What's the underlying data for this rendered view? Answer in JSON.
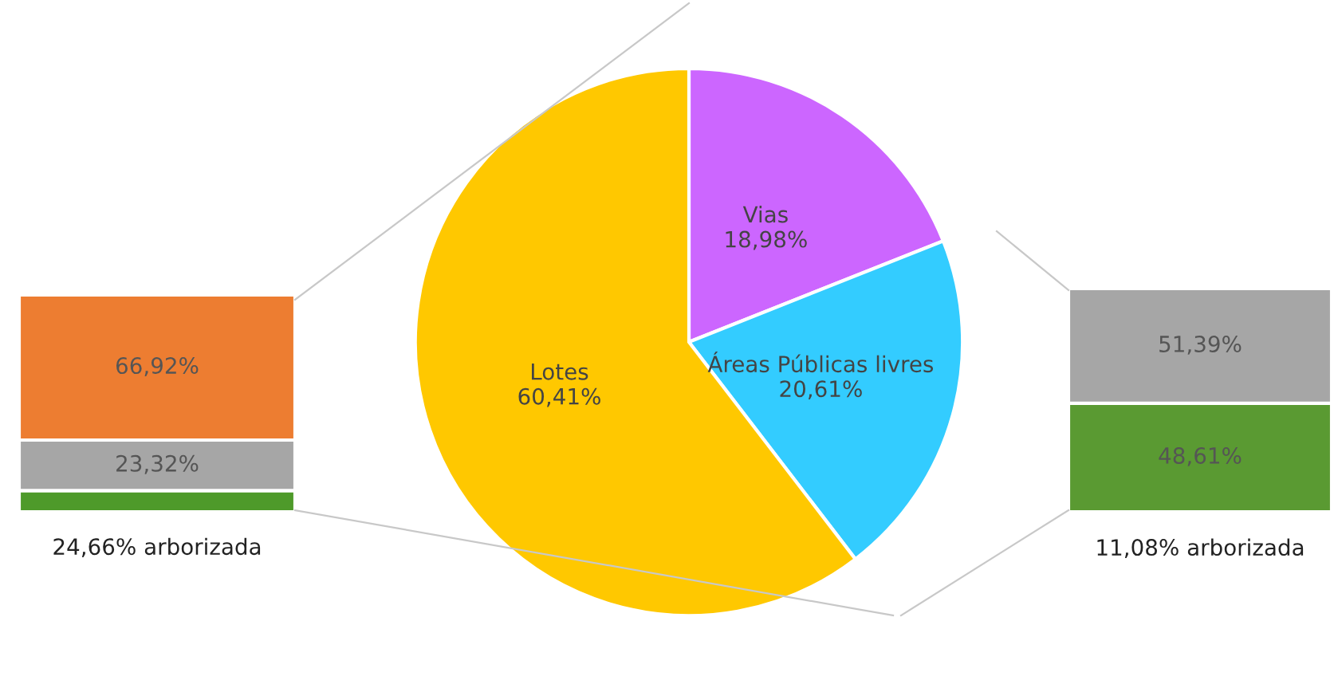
{
  "chart_data": [
    {
      "type": "pie",
      "categories": [
        "Vias",
        "Áreas Públicas livres",
        "Lotes"
      ],
      "values": [
        18.98,
        20.61,
        60.41
      ],
      "colors": [
        "#cc66ff",
        "#33ccff",
        "#ffc800"
      ],
      "value_labels": [
        "18,98%",
        "20,61%",
        "60,41%"
      ]
    },
    {
      "type": "bar",
      "stacked": true,
      "categories": [
        null
      ],
      "ylim": [
        0,
        100
      ],
      "series": [
        {
          "color": "#4e9a2a",
          "values": [
            9.76
          ],
          "value_labels": [
            null
          ]
        },
        {
          "color": "#a6a6a6",
          "values": [
            23.32
          ],
          "value_labels": [
            "23,32%"
          ]
        },
        {
          "color": "#ed7d31",
          "values": [
            66.92
          ],
          "value_labels": [
            "66,92%"
          ]
        }
      ],
      "annotations": [
        "24,66% arborizada"
      ]
    },
    {
      "type": "bar",
      "stacked": true,
      "categories": [
        null
      ],
      "ylim": [
        0,
        100
      ],
      "series": [
        {
          "color": "#5a9a32",
          "values": [
            48.61
          ],
          "value_labels": [
            "48,61%"
          ]
        },
        {
          "color": "#a6a6a6",
          "values": [
            51.39
          ],
          "value_labels": [
            "51,39%"
          ]
        }
      ],
      "annotations": [
        "11,08% arborizada"
      ]
    }
  ]
}
